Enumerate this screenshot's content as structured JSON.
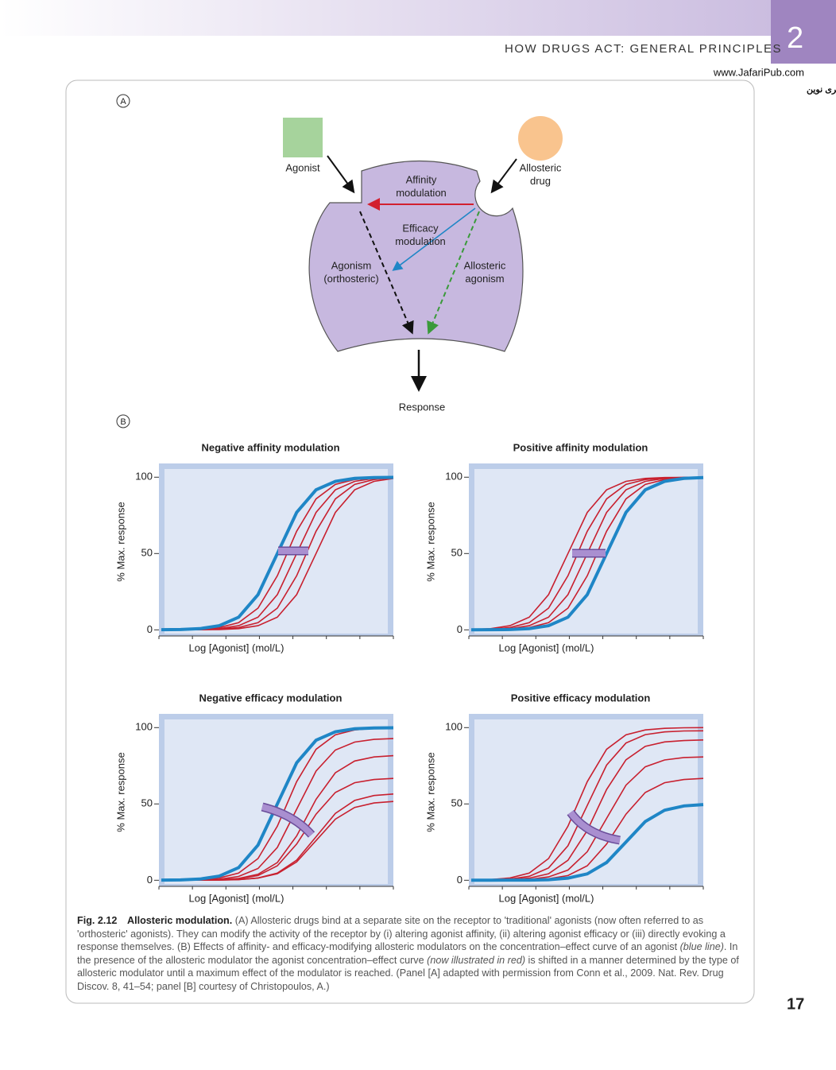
{
  "header": {
    "running_title": "HOW DRUGS ACT: GENERAL PRINCIPLES",
    "chapter": "2",
    "watermark_url": "www.JafariPub.com",
    "watermark_text": "فروشگاه تخصصی پزشکی جعفری نوین"
  },
  "page_number": "17",
  "panel_a": {
    "letter": "A",
    "labels": [
      {
        "name": "agonist",
        "lines": [
          "Agonist"
        ]
      },
      {
        "name": "allosteric-drug",
        "lines": [
          "Allosteric",
          "drug"
        ]
      },
      {
        "name": "affinity-modulation",
        "lines": [
          "Affinity",
          "modulation"
        ]
      },
      {
        "name": "efficacy-modulation",
        "lines": [
          "Efficacy",
          "modulation"
        ]
      },
      {
        "name": "agonism",
        "lines": [
          "Agonism",
          "(orthosteric)"
        ]
      },
      {
        "name": "allosteric-agonism",
        "lines": [
          "Allosteric",
          "agonism"
        ]
      },
      {
        "name": "response",
        "lines": [
          "Response"
        ]
      }
    ]
  },
  "panel_b": {
    "letter": "B"
  },
  "chart_data": [
    {
      "type": "line",
      "title": "Negative affinity modulation",
      "x_label": "Log [Agonist] (mol/L)",
      "y_label": "% Max. response",
      "ylim": [
        -4,
        109
      ],
      "yticks": [
        0,
        50,
        100
      ],
      "series": [
        {
          "color": "#c8202f",
          "values": [
            0,
            0.1,
            0.5,
            1.5,
            4.7,
            14.2,
            35.4,
            64.6,
            85.8,
            95.3,
            98.5,
            99.5,
            99.9
          ]
        },
        {
          "color": "#c8202f",
          "values": [
            0,
            0.1,
            0.2,
            0.8,
            2.7,
            8.3,
            23.1,
            50,
            76.9,
            91.7,
            97.3,
            99.2,
            99.8
          ]
        },
        {
          "color": "#c8202f",
          "values": [
            0,
            0,
            0.1,
            0.5,
            1.5,
            4.7,
            14.2,
            35.4,
            64.6,
            85.8,
            95.3,
            98.5,
            99.5
          ]
        },
        {
          "color": "#c8202f",
          "values": [
            0,
            0,
            0.1,
            0.2,
            0.8,
            2.7,
            8.3,
            23.1,
            50,
            76.9,
            91.7,
            97.3,
            99.2
          ]
        },
        {
          "color": "#1f86c6",
          "values": [
            0.1,
            0.2,
            0.8,
            2.7,
            8.3,
            23.1,
            50,
            76.9,
            91.7,
            97.3,
            99.2,
            99.8,
            99.9
          ]
        }
      ]
    },
    {
      "type": "line",
      "title": "Positive affinity modulation",
      "x_label": "Log [Agonist] (mol/L)",
      "y_label": "% Max. response",
      "ylim": [
        -4,
        109
      ],
      "yticks": [
        0,
        50,
        100
      ],
      "series": [
        {
          "color": "#c8202f",
          "values": [
            0,
            0.1,
            0.5,
            1.5,
            4.7,
            14.2,
            35.4,
            64.6,
            85.8,
            95.3,
            98.5,
            99.5,
            99.9
          ]
        },
        {
          "color": "#c8202f",
          "values": [
            0.1,
            0.2,
            0.8,
            2.7,
            8.3,
            23.1,
            50,
            76.9,
            91.7,
            97.3,
            99.2,
            99.8,
            99.9
          ]
        },
        {
          "color": "#c8202f",
          "values": [
            0.1,
            0.5,
            1.5,
            4.7,
            14.2,
            35.4,
            64.6,
            85.8,
            95.3,
            98.5,
            99.5,
            99.9,
            100
          ]
        },
        {
          "color": "#c8202f",
          "values": [
            0.2,
            0.8,
            2.7,
            8.3,
            23.1,
            50,
            76.9,
            91.7,
            97.3,
            99.2,
            99.8,
            99.9,
            100
          ]
        },
        {
          "color": "#1f86c6",
          "values": [
            0,
            0.1,
            0.2,
            0.8,
            2.7,
            8.3,
            23.1,
            50,
            76.9,
            91.7,
            97.3,
            99.2,
            99.8
          ]
        }
      ]
    },
    {
      "type": "line",
      "title": "Negative efficacy modulation",
      "x_label": "Log [Agonist] (mol/L)",
      "y_label": "% Max. response",
      "ylim": [
        -4,
        109
      ],
      "yticks": [
        0,
        50,
        100
      ],
      "series": [
        {
          "color": "#c8202f",
          "values": [
            0,
            0.1,
            0.5,
            1.5,
            4.7,
            14.2,
            35.4,
            64.6,
            85.8,
            95.3,
            98.5,
            99.5,
            99.9
          ]
        },
        {
          "color": "#c8202f",
          "values": [
            0,
            0.1,
            0.2,
            0.7,
            2.5,
            7.7,
            21.5,
            46.5,
            71.5,
            85.3,
            90.5,
            92.3,
            92.8
          ]
        },
        {
          "color": "#c8202f",
          "values": [
            0,
            0,
            0.1,
            0.4,
            1.2,
            3.9,
            11.6,
            29,
            53,
            70.4,
            78.1,
            80.8,
            81.6
          ]
        },
        {
          "color": "#c8202f",
          "values": [
            0,
            0,
            0.1,
            0.3,
            1,
            3.1,
            9.5,
            23.7,
            43.3,
            57.5,
            63.9,
            66,
            66.7
          ]
        },
        {
          "color": "#c8202f",
          "values": [
            0,
            0,
            0.1,
            0.1,
            0.5,
            1.5,
            4.7,
            13.2,
            28.5,
            43.8,
            52.3,
            55.5,
            56.5
          ]
        },
        {
          "color": "#c8202f",
          "values": [
            0,
            0,
            0.1,
            0.1,
            0.4,
            1.4,
            4.3,
            12,
            26,
            40,
            47.7,
            50.6,
            51.6
          ]
        },
        {
          "color": "#1f86c6",
          "values": [
            0.1,
            0.2,
            0.8,
            2.7,
            8.3,
            23.1,
            50,
            76.9,
            91.7,
            97.3,
            99.2,
            99.8,
            99.9
          ]
        }
      ]
    },
    {
      "type": "line",
      "title": "Positive efficacy modulation",
      "x_label": "Log [Agonist] (mol/L)",
      "y_label": "% Max. response",
      "ylim": [
        -4,
        109
      ],
      "yticks": [
        0,
        50,
        100
      ],
      "series": [
        {
          "color": "#c8202f",
          "values": [
            0,
            0,
            0.1,
            0.3,
            1,
            3.1,
            9.5,
            23.7,
            43.3,
            57.5,
            63.9,
            66,
            66.7
          ]
        },
        {
          "color": "#c8202f",
          "values": [
            0,
            0.1,
            0.2,
            0.6,
            2.2,
            6.7,
            18.7,
            40.5,
            62.3,
            74.3,
            78.8,
            80.4,
            80.8
          ]
        },
        {
          "color": "#c8202f",
          "values": [
            0,
            0.1,
            0.5,
            1.4,
            4.3,
            13.1,
            32.6,
            59.4,
            78.9,
            87.7,
            90.6,
            91.5,
            91.9
          ]
        },
        {
          "color": "#c8202f",
          "values": [
            0.1,
            0.2,
            0.8,
            2.6,
            8.1,
            22.6,
            49,
            75.4,
            89.9,
            95.4,
            97.2,
            97.8,
            97.9
          ]
        },
        {
          "color": "#c8202f",
          "values": [
            0.1,
            0.5,
            1.5,
            4.7,
            14.2,
            35.4,
            64.6,
            85.8,
            95.3,
            98.5,
            99.5,
            99.9,
            100
          ]
        },
        {
          "color": "#1f86c6",
          "values": [
            0,
            0,
            0.1,
            0.1,
            0.4,
            1.4,
            4.2,
            11.6,
            25,
            38.5,
            45.9,
            48.7,
            49.6
          ]
        }
      ]
    }
  ],
  "caption": {
    "segments": [
      {
        "style": "bold",
        "text": "Fig. 2.12"
      },
      {
        "style": "bold",
        "text": "Allosteric modulation."
      },
      {
        "style": "normal",
        "text": "(A) Allosteric drugs bind at a separate site on the receptor to 'traditional' agonists (now often referred to as 'orthosteric' agonists). They can modify the activity of the receptor by (i) altering agonist affinity, (ii) altering agonist efficacy or (iii) directly evoking a response themselves. (B) Effects of affinity- and efficacy-modifying allosteric modulators on the concentration–effect curve of an agonist"
      },
      {
        "style": "italic",
        "text": "(blue line)"
      },
      {
        "style": "normal",
        "text": ". In the presence of the allosteric modulator the agonist concentration–effect curve"
      },
      {
        "style": "italic",
        "text": "(now illustrated in red)"
      },
      {
        "style": "normal",
        "text": "is shifted in a manner determined by the type of allosteric modulator until a maximum effect of the modulator is reached. (Panel [A] adapted with permission from Conn et al., 2009. Nat. Rev. Drug Discov. 8, 41–54; panel [B] courtesy of Christopoulos, A.)"
      }
    ]
  }
}
